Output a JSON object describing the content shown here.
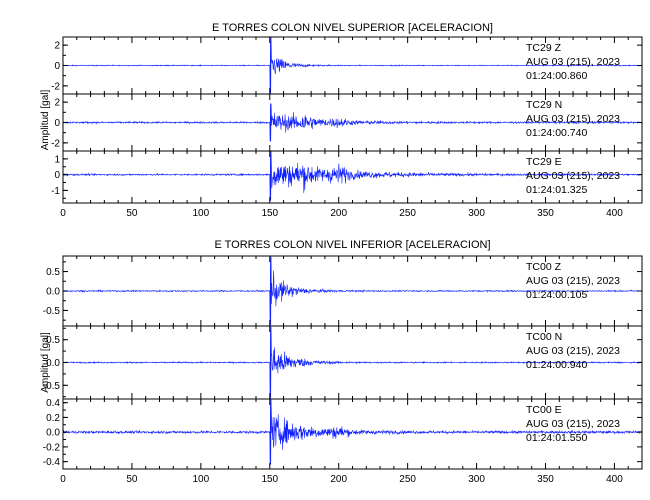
{
  "chart_data": [
    {
      "type": "line",
      "title": "E TORRES COLON NIVEL SUPERIOR [ACELERACION]",
      "ylabel": "Amplitud [gal]",
      "xlim": [
        0,
        420
      ],
      "xticks": [
        0,
        50,
        100,
        150,
        200,
        250,
        300,
        350,
        400
      ],
      "panels": [
        {
          "ylim": [
            -2.8,
            2.8
          ],
          "yticks": [
            -2,
            0,
            2
          ],
          "station": "TC29",
          "component": "Z",
          "date": "AUG 03 (215), 2023",
          "time": "01:24:00.860",
          "series": {
            "onset": 150,
            "peak": 2.8,
            "noise": 0.08,
            "decay": 9,
            "coda": []
          }
        },
        {
          "ylim": [
            -2.8,
            2.8
          ],
          "yticks": [
            -2,
            0,
            2
          ],
          "station": "TC29",
          "component": "N",
          "date": "AUG 03 (215), 2023",
          "time": "01:24:00.740",
          "series": {
            "onset": 150,
            "peak": 1.9,
            "noise": 0.15,
            "decay": 30,
            "coda": [
              [
                175,
                0.7
              ],
              [
                200,
                0.4
              ]
            ]
          }
        },
        {
          "ylim": [
            -1.8,
            1.5
          ],
          "yticks": [
            -1,
            0,
            1
          ],
          "station": "TC29",
          "component": "E",
          "date": "AUG 03 (215), 2023",
          "time": "01:24:01.325",
          "series": {
            "onset": 150,
            "peak": 1.7,
            "noise": 0.09,
            "decay": 42,
            "coda": [
              [
                175,
                0.5
              ],
              [
                200,
                0.6
              ]
            ]
          }
        }
      ]
    },
    {
      "type": "line",
      "title": "E TORRES COLON NIVEL INFERIOR [ACELERACION]",
      "ylabel": "Amplitud [gal]",
      "xlim": [
        0,
        420
      ],
      "xticks": [
        0,
        50,
        100,
        150,
        200,
        250,
        300,
        350,
        400
      ],
      "panels": [
        {
          "ylim": [
            -0.9,
            0.9
          ],
          "yticks": [
            -0.5,
            0.0,
            0.5
          ],
          "station": "TC00",
          "component": "Z",
          "date": "AUG 03 (215), 2023",
          "time": "01:24:00.105",
          "series": {
            "onset": 150,
            "peak": 0.9,
            "noise": 0.03,
            "decay": 12,
            "coda": []
          }
        },
        {
          "ylim": [
            -0.8,
            0.8
          ],
          "yticks": [
            -0.5,
            0.0,
            0.5
          ],
          "station": "TC00",
          "component": "N",
          "date": "AUG 03 (215), 2023",
          "time": "01:24:00.940",
          "series": {
            "onset": 150,
            "peak": 0.8,
            "noise": 0.025,
            "decay": 14,
            "coda": []
          }
        },
        {
          "ylim": [
            -0.5,
            0.45
          ],
          "yticks": [
            -0.4,
            -0.2,
            0.0,
            0.2,
            0.4
          ],
          "station": "TC00",
          "component": "E",
          "date": "AUG 03 (215), 2023",
          "time": "01:24:01.550",
          "series": {
            "onset": 150,
            "peak": 0.45,
            "noise": 0.03,
            "decay": 24,
            "coda": [
              [
                200,
                0.08
              ]
            ]
          }
        }
      ]
    }
  ]
}
